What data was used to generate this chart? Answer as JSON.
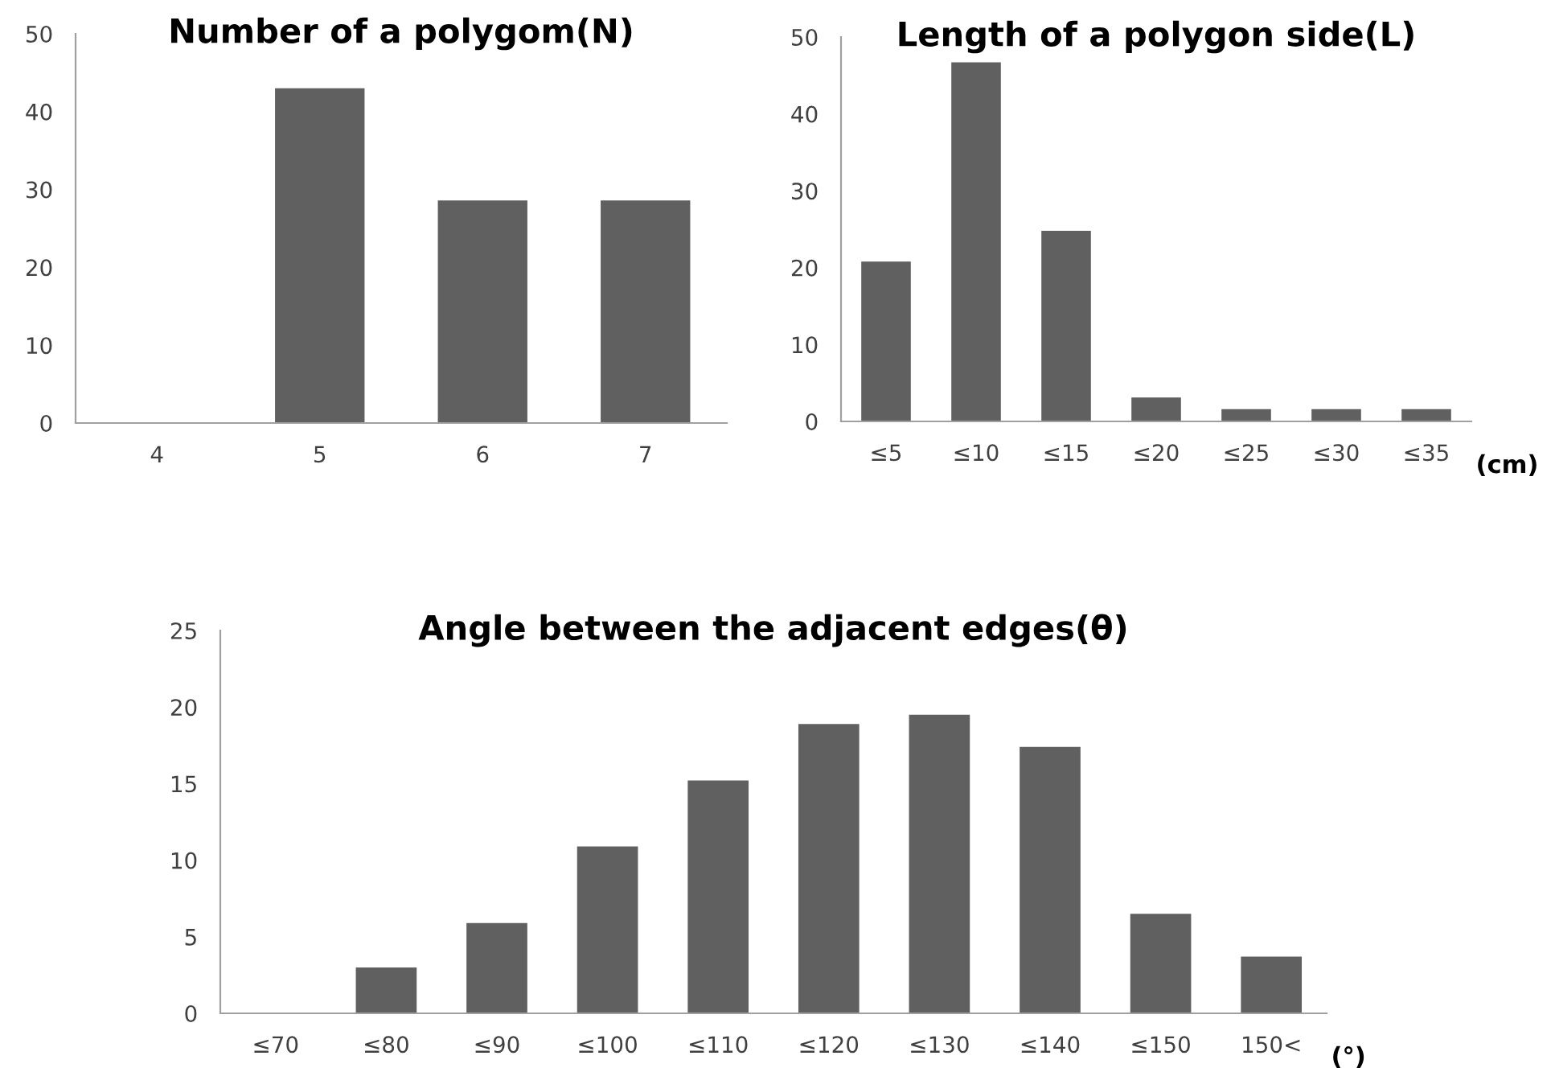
{
  "chart_data": [
    {
      "type": "bar",
      "title": "Number of a polygom(N)",
      "categories": [
        "4",
        "5",
        "6",
        "7"
      ],
      "values": [
        0,
        43,
        28.6,
        28.6
      ],
      "color": "#606060",
      "ylim": [
        0,
        50
      ],
      "yticks": [
        0,
        10,
        20,
        30,
        40,
        50
      ],
      "grid": false,
      "legend": false
    },
    {
      "type": "bar",
      "title": "Length of a polygon side(L)",
      "xlabel": "(cm)",
      "categories": [
        "≤5",
        "≤10",
        "≤15",
        "≤20",
        "≤25",
        "≤30",
        "≤35"
      ],
      "values": [
        20.8,
        46.7,
        24.8,
        3.1,
        1.6,
        1.6,
        1.6
      ],
      "color": "#606060",
      "ylim": [
        0,
        50
      ],
      "yticks": [
        0,
        10,
        20,
        30,
        40,
        50
      ],
      "grid": false,
      "legend": false
    },
    {
      "type": "bar",
      "title": "Angle between the adjacent edges(θ)",
      "xlabel": "(°)",
      "categories": [
        "≤70",
        "≤80",
        "≤90",
        "≤100",
        "≤110",
        "≤120",
        "≤130",
        "≤140",
        "≤150",
        "150<"
      ],
      "values": [
        0,
        3.0,
        5.9,
        10.9,
        15.2,
        18.9,
        19.5,
        17.4,
        6.5,
        3.7
      ],
      "color": "#606060",
      "ylim": [
        0,
        25
      ],
      "yticks": [
        0,
        5,
        10,
        15,
        20,
        25
      ],
      "grid": false,
      "legend": false
    }
  ]
}
